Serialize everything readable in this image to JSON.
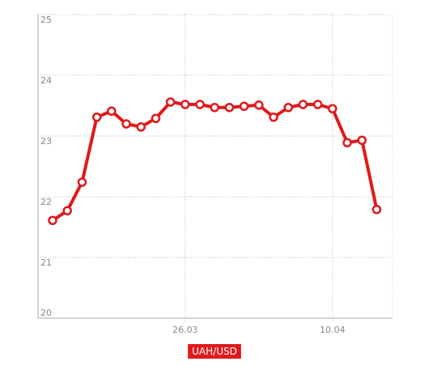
{
  "chart_data": {
    "type": "line",
    "categories": [
      null,
      null,
      null,
      null,
      null,
      null,
      null,
      null,
      null,
      "26.03",
      null,
      null,
      null,
      null,
      null,
      null,
      null,
      null,
      null,
      "10.04",
      null,
      null,
      null
    ],
    "series": [
      {
        "name": "UAH/USD",
        "color": "#e0191c",
        "values": [
          21.61,
          21.77,
          22.24,
          23.31,
          23.41,
          23.2,
          23.15,
          23.29,
          23.56,
          23.52,
          23.52,
          23.47,
          23.47,
          23.49,
          23.51,
          23.31,
          23.47,
          23.52,
          23.52,
          23.45,
          22.89,
          22.93,
          21.79
        ]
      }
    ],
    "ylim": [
      20,
      25
    ],
    "yticks": [
      20,
      21,
      22,
      23,
      24,
      25
    ],
    "grid": true
  }
}
